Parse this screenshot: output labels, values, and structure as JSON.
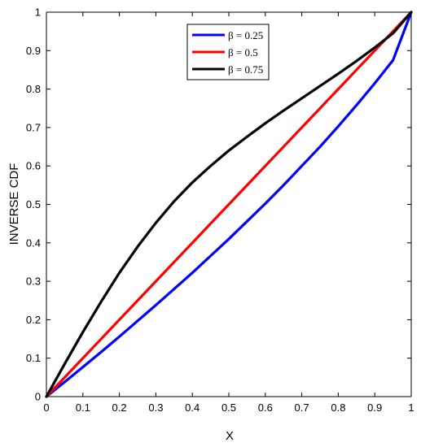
{
  "chart_data": {
    "type": "line",
    "title": "",
    "xlabel": "X",
    "ylabel": "INVERSE CDF",
    "xlim": [
      0,
      1
    ],
    "ylim": [
      0,
      1
    ],
    "xticks": [
      0,
      0.1,
      0.2,
      0.3,
      0.4,
      0.5,
      0.6,
      0.7,
      0.8,
      0.9,
      1
    ],
    "yticks": [
      0,
      0.1,
      0.2,
      0.3,
      0.4,
      0.5,
      0.6,
      0.7,
      0.8,
      0.9,
      1
    ],
    "xtick_labels": [
      "0",
      "0.1",
      "0.2",
      "0.3",
      "0.4",
      "0.5",
      "0.6",
      "0.7",
      "0.8",
      "0.9",
      "1"
    ],
    "ytick_labels": [
      "0",
      "0.1",
      "0.2",
      "0.3",
      "0.4",
      "0.5",
      "0.6",
      "0.7",
      "0.8",
      "0.9",
      "1"
    ],
    "grid": false,
    "legend_position": "top-center",
    "x": [
      0,
      0.05,
      0.1,
      0.15,
      0.2,
      0.25,
      0.3,
      0.35,
      0.4,
      0.45,
      0.5,
      0.55,
      0.6,
      0.65,
      0.7,
      0.75,
      0.8,
      0.85,
      0.9,
      0.95,
      1
    ],
    "series": [
      {
        "name": "β = 0.25",
        "color": "#0000ff",
        "values": [
          0,
          0.038,
          0.077,
          0.116,
          0.156,
          0.197,
          0.238,
          0.28,
          0.322,
          0.366,
          0.41,
          0.456,
          0.502,
          0.55,
          0.6,
          0.65,
          0.703,
          0.758,
          0.815,
          0.875,
          1
        ]
      },
      {
        "name": "β = 0.5",
        "color": "#ff0000",
        "values": [
          0,
          0.05,
          0.1,
          0.15,
          0.2,
          0.25,
          0.3,
          0.35,
          0.4,
          0.45,
          0.5,
          0.55,
          0.6,
          0.65,
          0.7,
          0.75,
          0.8,
          0.85,
          0.9,
          0.95,
          1
        ]
      },
      {
        "name": "β = 0.75",
        "color": "#000000",
        "values": [
          0,
          0.085,
          0.168,
          0.247,
          0.322,
          0.39,
          0.452,
          0.508,
          0.557,
          0.6,
          0.64,
          0.676,
          0.711,
          0.744,
          0.776,
          0.808,
          0.84,
          0.873,
          0.908,
          0.945,
          1
        ]
      }
    ]
  }
}
